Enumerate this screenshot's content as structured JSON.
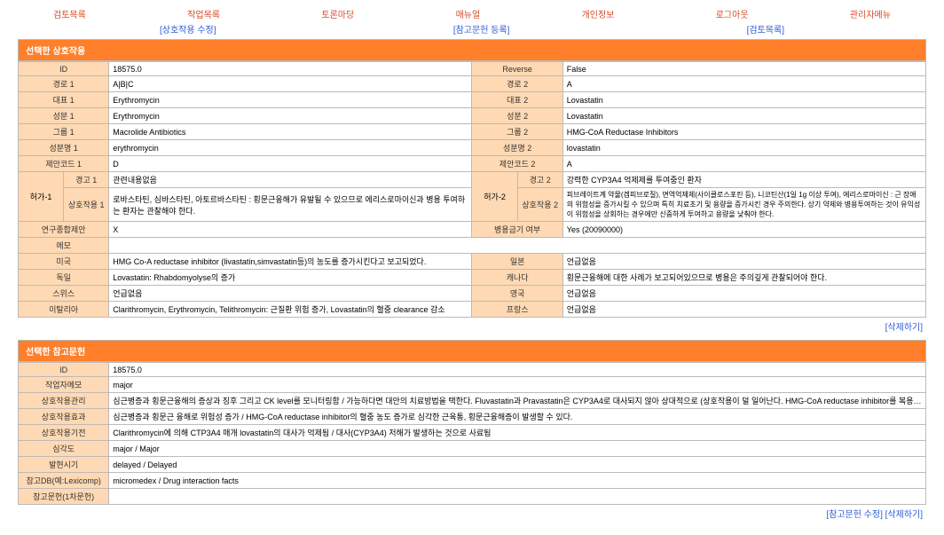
{
  "nav": {
    "top": [
      "검토목록",
      "작업목록",
      "토론마당",
      "매뉴얼",
      "개인정보",
      "로그아웃",
      "관리자메뉴"
    ],
    "sub": [
      "[상호작용 수정]",
      "[참고문헌 등록]",
      "[검토목록]"
    ]
  },
  "section1": {
    "title": "선택한 상호작용",
    "rows_top": [
      {
        "l1": "ID",
        "v1": "18575.0",
        "l2": "Reverse",
        "v2": "False"
      },
      {
        "l1": "경로 1",
        "v1": "A|B|C",
        "l2": "경로 2",
        "v2": "A"
      },
      {
        "l1": "대표 1",
        "v1": "Erythromycin",
        "l2": "대표 2",
        "v2": "Lovastatin"
      },
      {
        "l1": "성분 1",
        "v1": "Erythromycin",
        "l2": "성분 2",
        "v2": "Lovastatin"
      },
      {
        "l1": "그룹 1",
        "v1": "Macrolide Antibiotics",
        "l2": "그룹 2",
        "v2": "HMG-CoA Reductase Inhibitors"
      },
      {
        "l1": "성분명 1",
        "v1": "erythromycin",
        "l2": "성분명 2",
        "v2": "lovastatin"
      },
      {
        "l1": "제안코드 1",
        "v1": "D",
        "l2": "제안코드 2",
        "v2": "A"
      }
    ],
    "perm": {
      "left_group": "허가-1",
      "right_group": "허가-2",
      "warn1_l": "경고 1",
      "warn1_v": "관련내용없음",
      "warn2_l": "경고 2",
      "warn2_v": "강력한 CYP3A4 억제제를 투여중인 환자",
      "eff1_l": "상호작용 1",
      "eff1_v": "로바스타틴, 심바스타틴, 아토르바스타틴 : 횡문근융해가 유발될 수 있으므로 에리스로마이신과 병용 투여하는 환자는 관찰해야 한다.",
      "eff2_l": "상호작용 2",
      "eff2_v": "피브레이트계 약물(겜피브로질), 면역억제제(사이클로스포린 등), 니코틴산(1일 1g 이상 투여), 에리스로마이신 : 근 장애의 위험성을 증가시킬 수 있으며 특히 치료초기 및 용량을 증가시킨 경우 주의한다. 상기 약제와 병용투여하는 것이 유익성이 위험성을 상회하는 경우에만 신중하게 투여하고 용량을 낮춰야 한다."
    },
    "rows_mid": [
      {
        "l1": "연구종합제안",
        "v1": "X",
        "l2": "병용금기 여부",
        "v2": "Yes (20090000)"
      }
    ],
    "memo": {
      "l": "메모",
      "v": ""
    },
    "rows_country": [
      {
        "l1": "미국",
        "v1": "HMG Co-A reductase inhibitor (livastatin,simvastatin등)의 농도를 증가시킨다고 보고되었다.",
        "l2": "일본",
        "v2": "언급없음"
      },
      {
        "l1": "독일",
        "v1": "Lovastatin: Rhabdomyolyse의 증가",
        "l2": "캐나다",
        "v2": "횡문근융해에 대한 사례가 보고되어있으므로 병용은 주의깊게 관찰되어야 한다."
      },
      {
        "l1": "스위스",
        "v1": "언급없음",
        "l2": "영국",
        "v2": "언급없음"
      },
      {
        "l1": "이탈리아",
        "v1": "Clarithromycin, Erythromycin, Telithromycin: 근질환 위험 증가, Lovastatin의 혈중 clearance 감소",
        "l2": "프랑스",
        "v2": "언급없음"
      }
    ],
    "delete_link": "[삭제하기]"
  },
  "section2": {
    "title": "선택한 참고문헌",
    "rows": [
      {
        "l": "ID",
        "v": "18575.0"
      },
      {
        "l": "작업자메모",
        "v": "major"
      },
      {
        "l": "상호작용관리",
        "v": "심근병증과 횡문근융해의 증상과 징후 그리고 CK level를 모니터링함 / 가능하다면 대안의 치료방법을 택한다. Fluvastatin과 Pravastatin은 CYP3A4로 대사되지 않아 상대적으로 (상호작용이 덜 일어난다. HMG-CoA reductase inhibitor를 복용하는 환자들에게 미오가 높아지"
      },
      {
        "l": "상호작용효과",
        "v": "심근병증과 횡문근 융해로 위험성 증가 / HMG-CoA reductase inhibitor의 혈중 농도 증가로 심각한 근육통, 횡문근융해증이 발생할 수 있다."
      },
      {
        "l": "상호작용기전",
        "v": "Clarithromycin에 의해 CTP3A4 매개 lovastatin의 대사가 억제됨 / 대사(CYP3A4) 저해가 발생하는 것으로 사료됨"
      },
      {
        "l": "심각도",
        "v": "major / Major"
      },
      {
        "l": "발현시기",
        "v": "delayed / Delayed"
      },
      {
        "l": "참고DB(예:Lexicomp)",
        "v": "micromedex / Drug interaction facts"
      },
      {
        "l": "참고문헌(1차문헌)",
        "v": ""
      }
    ],
    "links": "[참고문헌 수정] [삭제하기]"
  }
}
